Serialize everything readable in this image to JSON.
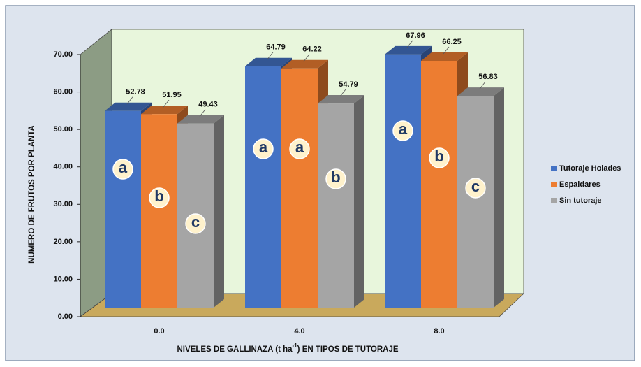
{
  "chart_data": {
    "type": "bar3d",
    "y_label": "NUMERO DE FRUTOS POR PLANTA",
    "x_label_parts": [
      "NIVELES DE GALLINAZA  (t ha",
      "-1",
      ") EN TIPOS DE TUTORAJE"
    ],
    "categories": [
      "0.0",
      "4.0",
      "8.0"
    ],
    "series": [
      {
        "name": "Tutoraje Holades",
        "color": "#4472c4",
        "values": [
          52.78,
          64.79,
          67.96
        ],
        "letters": [
          "a",
          "a",
          "a"
        ]
      },
      {
        "name": "Espaldares",
        "color": "#ed7d31",
        "values": [
          51.95,
          64.22,
          66.25
        ],
        "letters": [
          "b",
          "a",
          "b"
        ]
      },
      {
        "name": "Sin tutoraje",
        "color": "#a5a5a5",
        "values": [
          49.43,
          54.79,
          56.83
        ],
        "letters": [
          "c",
          "b",
          "c"
        ]
      }
    ],
    "ylim": [
      0,
      70
    ],
    "yticks": [
      {
        "value": 0,
        "label": "0.00"
      },
      {
        "value": 10,
        "label": "10.00"
      },
      {
        "value": 20,
        "label": "20.00"
      },
      {
        "value": 30,
        "label": "30.00"
      },
      {
        "value": 40,
        "label": "40.00"
      },
      {
        "value": 50,
        "label": "50.00"
      },
      {
        "value": 60,
        "label": "60.00"
      },
      {
        "value": 70,
        "label": "70.00"
      }
    ],
    "legend": "right"
  }
}
